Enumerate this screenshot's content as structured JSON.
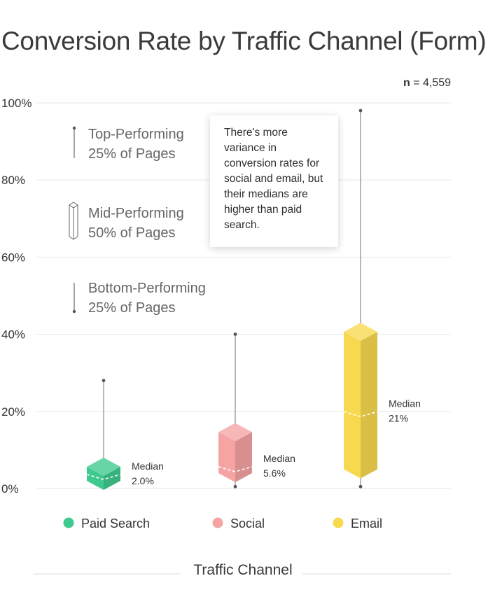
{
  "title": "Conversion Rate by Traffic Channel (Form)",
  "n_label": {
    "n": "n",
    "value": "= 4,559"
  },
  "callout_text": "There's more variance in conversion rates for social and email, but their medians are higher than paid search.",
  "key": [
    {
      "line1": "Top-Performing",
      "line2": "25% of Pages"
    },
    {
      "line1": "Mid-Performing",
      "line2": "50% of Pages"
    },
    {
      "line1": "Bottom-Performing",
      "line2": "25% of Pages"
    }
  ],
  "colors": {
    "paid_search": "#3ec98e",
    "social": "#f5a3a3",
    "email": "#f7d94f",
    "whisker": "#888888",
    "grid": "#e6e6e6"
  },
  "chart_data": {
    "type": "box",
    "title": "Conversion Rate by Traffic Channel (Form)",
    "xlabel": "Traffic Channel",
    "ylabel": "",
    "ylim": [
      0,
      100
    ],
    "yticks": [
      "0%",
      "20%",
      "40%",
      "60%",
      "80%",
      "100%"
    ],
    "ytick_values": [
      0,
      20,
      40,
      60,
      80,
      100
    ],
    "grid": true,
    "legend_position": "bottom",
    "series": [
      {
        "name": "Paid Search",
        "min": 0.5,
        "q1": 2,
        "median": 2.0,
        "q3": 8,
        "max": 28,
        "median_label": "Median",
        "median_value": "2.0%"
      },
      {
        "name": "Social",
        "min": 0.5,
        "q1": 4,
        "median": 5.6,
        "q3": 17,
        "max": 40,
        "median_label": "Median",
        "median_value": "5.6%"
      },
      {
        "name": "Email",
        "min": 0.5,
        "q1": 5,
        "median": 21,
        "q3": 43,
        "max": 98,
        "median_label": "Median",
        "median_value": "21%"
      }
    ]
  }
}
